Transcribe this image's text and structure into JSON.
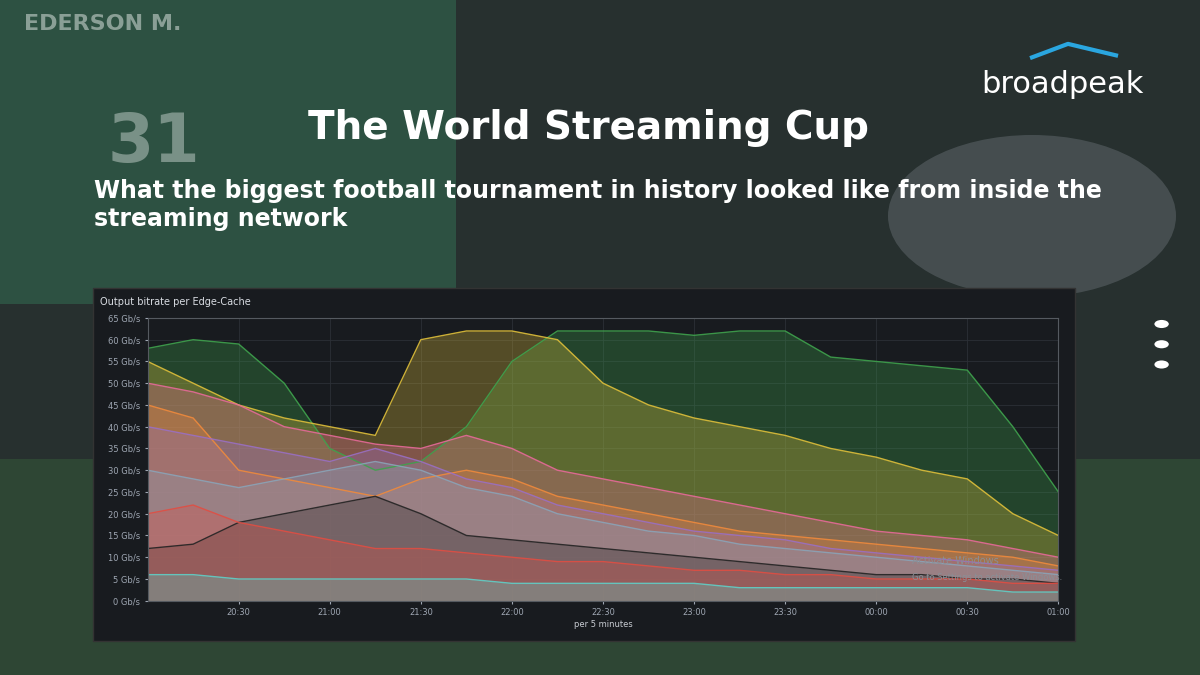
{
  "header": {
    "title": "The World Streaming Cup",
    "subtitle": "What the biggest football tournament in history looked like from inside the streaming network",
    "brand": "broadpeak"
  },
  "background_texts": [
    "EDERSON M.",
    "31"
  ],
  "watermark": [
    "Activate Windows",
    "Go to Settings to activate Windows."
  ],
  "chart_data": {
    "type": "area",
    "title": "Output bitrate per Edge-Cache",
    "x_label": "per 5 minutes",
    "x": [
      0,
      15,
      30,
      45,
      60,
      75,
      90,
      105,
      120,
      135,
      150,
      165,
      180,
      195,
      210,
      225,
      240,
      255,
      270,
      285,
      300
    ],
    "xlim": [
      0,
      300
    ],
    "xticks": [
      {
        "value": 30,
        "label": "20:30"
      },
      {
        "value": 60,
        "label": "21:00"
      },
      {
        "value": 90,
        "label": "21:30"
      },
      {
        "value": 120,
        "label": "22:00"
      },
      {
        "value": 150,
        "label": "22:30"
      },
      {
        "value": 180,
        "label": "23:00"
      },
      {
        "value": 210,
        "label": "23:30"
      },
      {
        "value": 240,
        "label": "00:00"
      },
      {
        "value": 270,
        "label": "00:30"
      },
      {
        "value": 300,
        "label": "01:00"
      }
    ],
    "ylim": [
      0,
      65
    ],
    "yticks": [
      {
        "value": 0,
        "label": "0 Gb/s"
      },
      {
        "value": 5,
        "label": "5 Gb/s"
      },
      {
        "value": 10,
        "label": "10 Gb/s"
      },
      {
        "value": 15,
        "label": "15 Gb/s"
      },
      {
        "value": 20,
        "label": "20 Gb/s"
      },
      {
        "value": 25,
        "label": "25 Gb/s"
      },
      {
        "value": 30,
        "label": "30 Gb/s"
      },
      {
        "value": 35,
        "label": "35 Gb/s"
      },
      {
        "value": 40,
        "label": "40 Gb/s"
      },
      {
        "value": 45,
        "label": "45 Gb/s"
      },
      {
        "value": 50,
        "label": "50 Gb/s"
      },
      {
        "value": 55,
        "label": "55 Gb/s"
      },
      {
        "value": 60,
        "label": "60 Gb/s"
      },
      {
        "value": 65,
        "label": "65 Gb/s"
      }
    ],
    "grid": true,
    "series": [
      {
        "color": "#3fa34d",
        "values": [
          58,
          60,
          59,
          50,
          35,
          30,
          32,
          40,
          55,
          62,
          62,
          62,
          61,
          62,
          62,
          56,
          55,
          54,
          53,
          40,
          25
        ]
      },
      {
        "color": "#e0c03a",
        "values": [
          55,
          50,
          45,
          42,
          40,
          38,
          60,
          62,
          62,
          60,
          50,
          45,
          42,
          40,
          38,
          35,
          33,
          30,
          28,
          20,
          15
        ]
      },
      {
        "color": "#e86a9a",
        "values": [
          50,
          48,
          45,
          40,
          38,
          36,
          35,
          38,
          35,
          30,
          28,
          26,
          24,
          22,
          20,
          18,
          16,
          15,
          14,
          12,
          10
        ]
      },
      {
        "color": "#f08a3c",
        "values": [
          45,
          42,
          30,
          28,
          26,
          24,
          28,
          30,
          28,
          24,
          22,
          20,
          18,
          16,
          15,
          14,
          13,
          12,
          11,
          10,
          8
        ]
      },
      {
        "color": "#9a6fc4",
        "values": [
          40,
          38,
          36,
          34,
          32,
          35,
          32,
          28,
          26,
          22,
          20,
          18,
          16,
          15,
          14,
          12,
          11,
          10,
          9,
          8,
          7
        ]
      },
      {
        "color": "#8aa4b8",
        "values": [
          30,
          28,
          26,
          28,
          30,
          32,
          30,
          26,
          24,
          20,
          18,
          16,
          15,
          13,
          12,
          11,
          10,
          9,
          8,
          7,
          6
        ]
      },
      {
        "color": "#222222",
        "values": [
          12,
          13,
          18,
          20,
          22,
          24,
          20,
          15,
          14,
          13,
          12,
          11,
          10,
          9,
          8,
          7,
          6,
          6,
          5,
          5,
          4
        ]
      },
      {
        "color": "#e24d42",
        "values": [
          20,
          22,
          18,
          16,
          14,
          12,
          12,
          11,
          10,
          9,
          9,
          8,
          7,
          7,
          6,
          6,
          5,
          5,
          5,
          4,
          4
        ]
      },
      {
        "color": "#5fd0c8",
        "values": [
          6,
          6,
          5,
          5,
          5,
          5,
          5,
          5,
          4,
          4,
          4,
          4,
          4,
          3,
          3,
          3,
          3,
          3,
          3,
          2,
          2
        ]
      }
    ]
  }
}
